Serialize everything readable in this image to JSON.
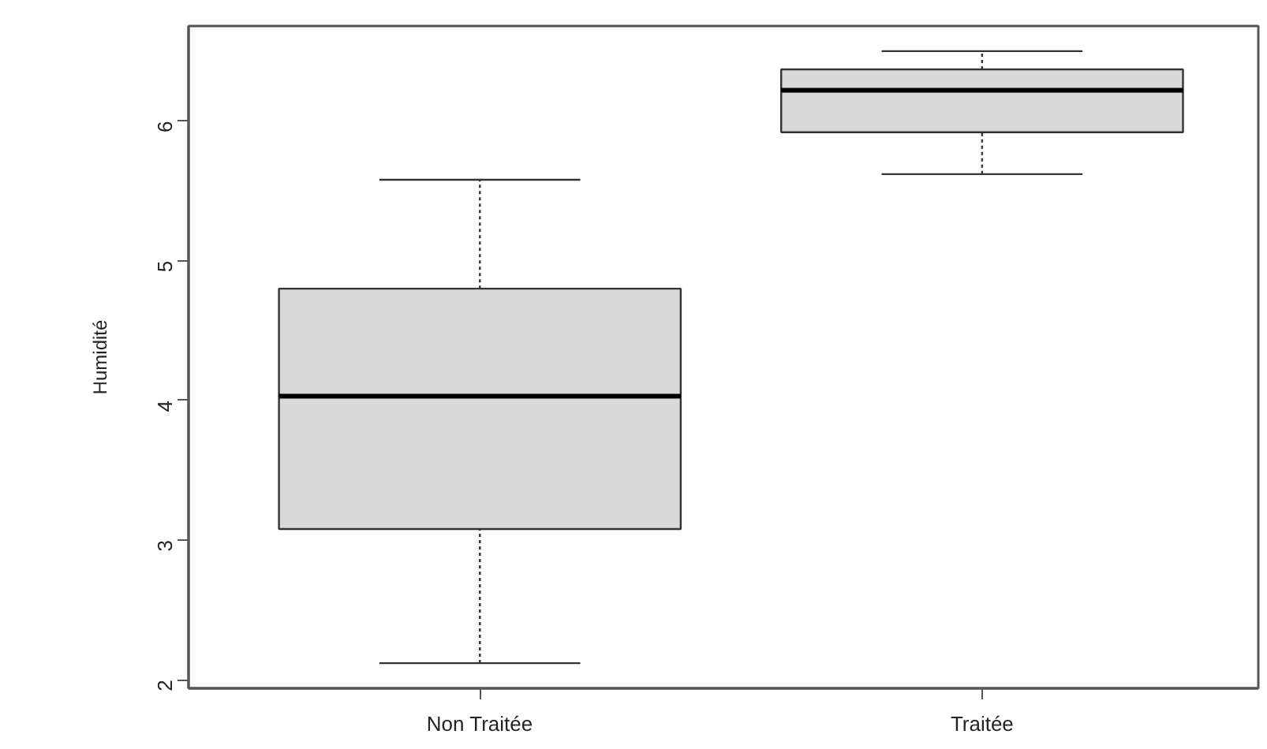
{
  "chart_data": {
    "type": "box",
    "ylabel": "Humidité",
    "categories": [
      "Non Traitée",
      "Traitée"
    ],
    "series": [
      {
        "color": "#d9d9d9",
        "boxes": [
          {
            "low": 2.12,
            "q1": 3.08,
            "median": 4.03,
            "q3": 4.8,
            "high": 5.58
          },
          {
            "low": 5.62,
            "q1": 5.92,
            "median": 6.22,
            "q3": 6.37,
            "high": 6.5
          }
        ]
      }
    ],
    "ylim": [
      1.94,
      6.68
    ],
    "yticks": [
      2,
      3,
      4,
      5,
      6
    ],
    "grid": false
  }
}
